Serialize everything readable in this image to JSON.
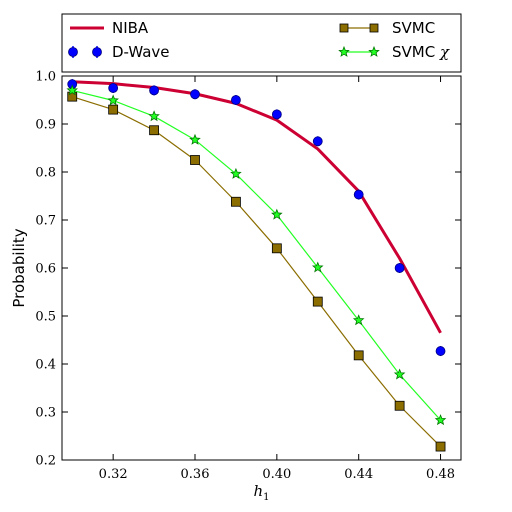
{
  "chart_data": {
    "type": "line",
    "xlabel": "h",
    "xlabel_subscript": "1",
    "ylabel": "Probability",
    "xlim": [
      0.295,
      0.49
    ],
    "ylim": [
      0.2,
      1.0
    ],
    "xticks": [
      0.32,
      0.36,
      0.4,
      0.44,
      0.48
    ],
    "xtick_labels": [
      "0.32",
      "0.36",
      "0.40",
      "0.44",
      "0.48"
    ],
    "yticks": [
      0.2,
      0.3,
      0.4,
      0.5,
      0.6,
      0.7,
      0.8,
      0.9,
      1.0
    ],
    "ytick_labels": [
      "0.2",
      "0.3",
      "0.4",
      "0.5",
      "0.6",
      "0.7",
      "0.8",
      "0.9",
      "1.0"
    ],
    "grid": false,
    "legend_placement": "top, outside plot",
    "series": [
      {
        "name": "NIBA",
        "style": "line",
        "color": "#cc0033",
        "x": [
          0.3,
          0.32,
          0.34,
          0.36,
          0.38,
          0.4,
          0.42,
          0.44,
          0.46,
          0.48
        ],
        "values": [
          0.988,
          0.984,
          0.976,
          0.963,
          0.943,
          0.908,
          0.848,
          0.76,
          0.62,
          0.465
        ]
      },
      {
        "name": "D-Wave",
        "style": "errorbar-circle",
        "color": "#0000ff",
        "x": [
          0.3,
          0.32,
          0.34,
          0.36,
          0.38,
          0.4,
          0.42,
          0.44,
          0.46,
          0.48
        ],
        "values": [
          0.983,
          0.975,
          0.97,
          0.962,
          0.95,
          0.92,
          0.864,
          0.753,
          0.6,
          0.427
        ]
      },
      {
        "name": "SVMC",
        "style": "line-square",
        "color": "#8b6d00",
        "x": [
          0.3,
          0.32,
          0.34,
          0.36,
          0.38,
          0.4,
          0.42,
          0.44,
          0.46,
          0.48
        ],
        "values": [
          0.957,
          0.93,
          0.887,
          0.825,
          0.738,
          0.641,
          0.53,
          0.418,
          0.313,
          0.228
        ]
      },
      {
        "name": "SVMC χ",
        "style": "line-star",
        "color": "#22ff22",
        "x": [
          0.3,
          0.32,
          0.34,
          0.36,
          0.38,
          0.4,
          0.42,
          0.44,
          0.46,
          0.48
        ],
        "values": [
          0.97,
          0.949,
          0.916,
          0.867,
          0.796,
          0.711,
          0.601,
          0.491,
          0.378,
          0.283
        ]
      }
    ]
  },
  "legend": {
    "niba": "NIBA",
    "dwave": "D-Wave",
    "svmc": "SVMC",
    "svmc_chi_prefix": "SVMC ",
    "svmc_chi_symbol": "χ"
  }
}
